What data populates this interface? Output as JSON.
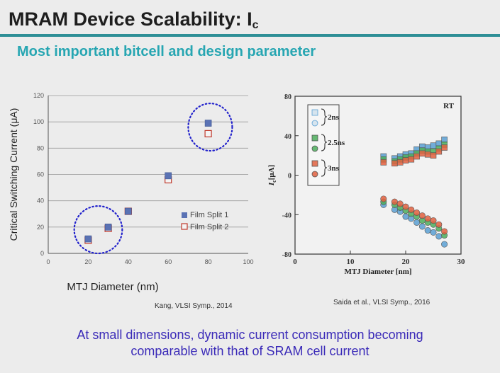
{
  "slide": {
    "title_main": "MRAM Device Scalability: I",
    "title_sub": "c",
    "subtitle": "Most important bitcell and design parameter",
    "footer_line1": "At small dimensions, dynamic current consumption becoming",
    "footer_line2": "comparable with that of SRAM cell current",
    "caption_left": "Kang, VLSI Symp., 2014",
    "caption_right": "Saida et al., VLSI Symp., 2016"
  },
  "colors": {
    "accent_rule": "#2e8f96",
    "subtitle": "#27a6b2",
    "footer": "#3a2ab8",
    "film1": "#5a72b4",
    "film2": "#c0392b",
    "circle": "#2222cc",
    "s2ns": "#5aa0d4",
    "s25ns": "#4cae5c",
    "s3ns": "#e06040"
  },
  "chart_data": [
    {
      "type": "scatter",
      "title": "",
      "xlabel": "MTJ Diameter (nm)",
      "ylabel": "Critical Switching Current (μA)",
      "xlim": [
        0,
        100
      ],
      "ylim": [
        0,
        120
      ],
      "xticks": [
        "0",
        "20",
        "40",
        "60",
        "80",
        "100"
      ],
      "yticks": [
        "0",
        "20",
        "40",
        "60",
        "80",
        "100",
        "120"
      ],
      "grid": "horizontal",
      "legend": "right",
      "series": [
        {
          "name": "Film Split 1",
          "marker": "filled-square",
          "color": "#5a72b4",
          "points": [
            [
              20,
              11
            ],
            [
              30,
              20
            ],
            [
              40,
              32
            ],
            [
              60,
              59
            ],
            [
              80,
              99
            ]
          ]
        },
        {
          "name": "Film Split 2",
          "marker": "open-square",
          "color": "#c0392b",
          "points": [
            [
              20,
              10
            ],
            [
              30,
              19
            ],
            [
              40,
              32
            ],
            [
              60,
              56
            ],
            [
              80,
              91
            ]
          ]
        }
      ],
      "annotations": [
        {
          "type": "dotted-ellipse",
          "center": [
            25,
            18
          ],
          "radii": [
            12,
            18
          ]
        },
        {
          "type": "dotted-ellipse",
          "center": [
            81,
            96
          ],
          "radii": [
            11,
            18
          ]
        }
      ]
    },
    {
      "type": "scatter",
      "title": "",
      "corner_label": "RT",
      "xlabel": "MTJ Diameter [nm]",
      "ylabel_main": "I",
      "ylabel_sub": "c",
      "ylabel_unit": "[μA]",
      "xlim": [
        0,
        30
      ],
      "ylim": [
        -80,
        80
      ],
      "xticks": [
        "0",
        "10",
        "20",
        "30"
      ],
      "yticks": [
        "80",
        "40",
        "0",
        "-40",
        "-80"
      ],
      "legend": "top-left",
      "series": [
        {
          "name": "2ns",
          "color": "#5aa0d4",
          "x": [
            16,
            18,
            19,
            20,
            21,
            22,
            23,
            24,
            25,
            26,
            27
          ],
          "positive": [
            19,
            17,
            19,
            21,
            22,
            26,
            29,
            28,
            30,
            32,
            36
          ],
          "negative": [
            -30,
            -35,
            -37,
            -42,
            -44,
            -48,
            -52,
            -56,
            -58,
            -62,
            -70
          ]
        },
        {
          "name": "2.5ns",
          "color": "#4cae5c",
          "x": [
            16,
            18,
            19,
            20,
            21,
            22,
            23,
            24,
            25,
            26,
            27
          ],
          "positive": [
            16,
            14,
            16,
            18,
            19,
            22,
            25,
            24,
            24,
            27,
            31
          ],
          "negative": [
            -27,
            -30,
            -33,
            -36,
            -39,
            -42,
            -46,
            -48,
            -50,
            -54,
            -61
          ]
        },
        {
          "name": "3ns",
          "color": "#e06040",
          "x": [
            16,
            18,
            19,
            20,
            21,
            22,
            23,
            24,
            25,
            26,
            27
          ],
          "positive": [
            13,
            12,
            13,
            15,
            16,
            19,
            22,
            21,
            20,
            24,
            28
          ],
          "negative": [
            -24,
            -27,
            -29,
            -32,
            -35,
            -38,
            -41,
            -44,
            -46,
            -50,
            -57
          ]
        }
      ]
    }
  ]
}
